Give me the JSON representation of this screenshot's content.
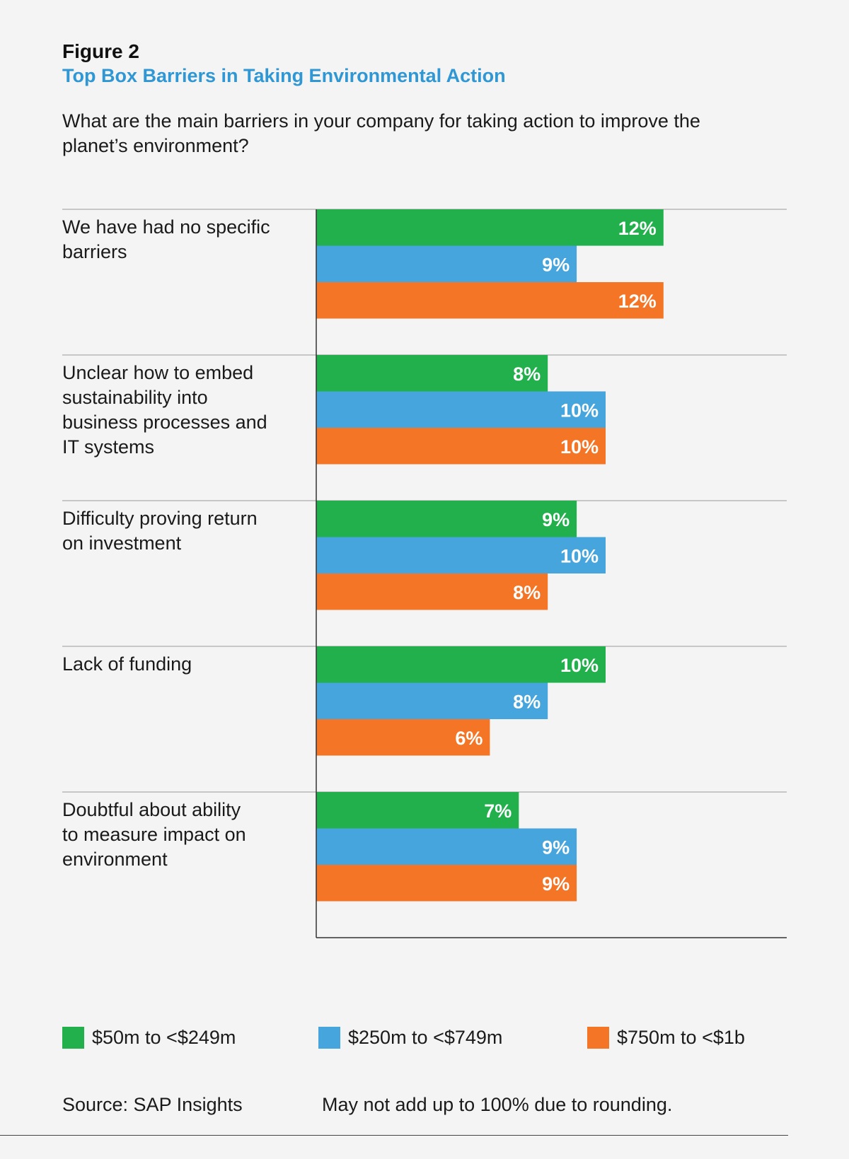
{
  "figure": {
    "label": "Figure 2",
    "title": "Top Box Barriers in Taking Environmental Action",
    "question": "What are the main barriers in your company for taking action to improve the planet’s environment?"
  },
  "colors": {
    "green": "#21b04b",
    "blue": "#47a5dd",
    "orange": "#f47525",
    "title_blue": "#2f97d3",
    "background": "#f4f4f4"
  },
  "chart_data": {
    "type": "bar",
    "orientation": "horizontal",
    "categories": [
      "We have had no specific barriers",
      "Unclear how to embed sustainability into business processes and IT systems",
      "Difficulty proving return on investment",
      "Lack of funding",
      "Doubtful about ability to measure impact on environment"
    ],
    "series": [
      {
        "name": "$50m to <$249m",
        "color": "#21b04b",
        "values": [
          12,
          8,
          9,
          10,
          7
        ],
        "labels": [
          "12%",
          "8%",
          "9%",
          "10%",
          "7%"
        ]
      },
      {
        "name": "$250m to <$749m",
        "color": "#47a5dd",
        "values": [
          9,
          10,
          10,
          8,
          9
        ],
        "labels": [
          "9%",
          "10%",
          "10%",
          "8%",
          "9%"
        ]
      },
      {
        "name": "$750m to <$1b",
        "color": "#f47525",
        "values": [
          12,
          10,
          8,
          6,
          9
        ],
        "labels": [
          "12%",
          "10%",
          "8%",
          "6%",
          "9%"
        ]
      }
    ],
    "category_lines": [
      [
        "We have had no specific",
        "barriers"
      ],
      [
        "Unclear how to embed",
        "sustainability into",
        "business processes and",
        "IT systems"
      ],
      [
        "Difficulty proving return",
        "on investment"
      ],
      [
        "Lack of funding"
      ],
      [
        "Doubtful about ability",
        "to measure impact on",
        "environment"
      ]
    ],
    "unit": "%",
    "legend_position": "bottom",
    "grid": false
  },
  "legend": {
    "items": [
      {
        "label": "$50m to <$249m",
        "color": "#21b04b"
      },
      {
        "label": "$250m to <$749m",
        "color": "#47a5dd"
      },
      {
        "label": "$750m to <$1b",
        "color": "#f47525"
      }
    ]
  },
  "footer": {
    "source": "Source: SAP Insights",
    "note": "May not add up to 100% due to rounding."
  }
}
